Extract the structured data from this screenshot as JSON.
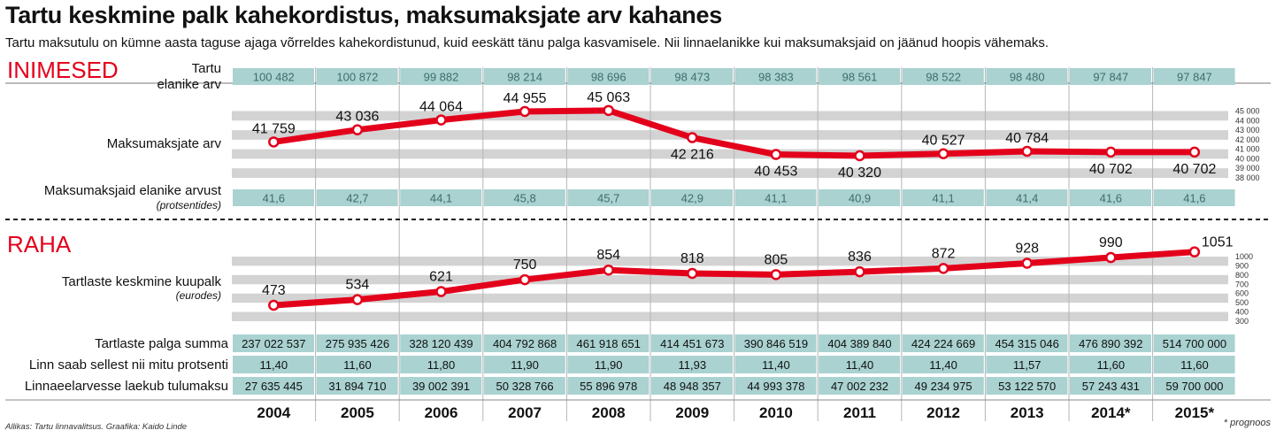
{
  "title": "Tartu keskmine palk kahekordistus, maksumaksjate arv kahanes",
  "subtitle": "Tartu maksutulu on kümne aasta taguse ajaga võrreldes kahekordistunud, kuid eeskätt tänu palga kasvamisele. Nii linnaelanikke kui maksumaksjaid on jäänud hoopis vähemaks.",
  "source": "Allikas: Tartu linnavalitsus. Graafika: Kaido Linde",
  "footnote": "* prognoos",
  "colors": {
    "line": "#e3001b",
    "cell": "#a9d2d1",
    "band": "#d3d3d3",
    "section": "#e3001b"
  },
  "years": [
    "2004",
    "2005",
    "2006",
    "2007",
    "2008",
    "2009",
    "2010",
    "2011",
    "2012",
    "2013",
    "2014*",
    "2015*"
  ],
  "sections": {
    "people": "INIMESED",
    "money": "RAHA"
  },
  "rows": {
    "population": {
      "label_lines": [
        "Tartu",
        "elanike arv"
      ],
      "values": [
        "100 482",
        "100 872",
        "99 882",
        "98 214",
        "98 696",
        "98 473",
        "98 383",
        "98 561",
        "98 522",
        "98 480",
        "97 847",
        "97 847"
      ]
    },
    "share": {
      "label": "Maksumaksjaid elanike arvust",
      "sublabel": "(protsentides)",
      "values": [
        "41,6",
        "42,7",
        "44,1",
        "45,8",
        "45,7",
        "42,9",
        "41,1",
        "40,9",
        "41,1",
        "41,4",
        "41,6",
        "41,6"
      ]
    },
    "wage_sum": {
      "label": "Tartlaste palga summa",
      "values": [
        "237 022 537",
        "275 935 426",
        "328 120 439",
        "404 792 868",
        "461 918 651",
        "414 451 673",
        "390 846 519",
        "404 389 840",
        "424 224 669",
        "454 315 046",
        "476 890 392",
        "514 700 000"
      ]
    },
    "city_pct": {
      "label": "Linn saab sellest nii mitu protsenti",
      "values": [
        "11,40",
        "11,60",
        "11,80",
        "11,90",
        "11,90",
        "11,93",
        "11,40",
        "11,40",
        "11,40",
        "11,57",
        "11,60",
        "11,60"
      ]
    },
    "income_tax": {
      "label": "Linnaeelarvesse laekub tulumaksu",
      "values": [
        "27 635 445",
        "31 894 710",
        "39 002 391",
        "50 328 766",
        "55 896 978",
        "48 948 357",
        "44 993 378",
        "47 002 232",
        "49 234 975",
        "53 122 570",
        "57 243 431",
        "59 700 000"
      ]
    }
  },
  "chart_data": [
    {
      "type": "line",
      "label": "Maksumaksjate arv",
      "categories": [
        "2004",
        "2005",
        "2006",
        "2007",
        "2008",
        "2009",
        "2010",
        "2011",
        "2012",
        "2013",
        "2014*",
        "2015*"
      ],
      "values": [
        41759,
        43036,
        44064,
        44955,
        45063,
        42216,
        40453,
        40320,
        40527,
        40784,
        40702,
        40702
      ],
      "value_labels": [
        "41 759",
        "43 036",
        "44 064",
        "44 955",
        "45 063",
        "42 216",
        "40 453",
        "40 320",
        "40 527",
        "40 784",
        "40 702",
        "40 702"
      ],
      "label_position": [
        "above",
        "above",
        "above",
        "above",
        "above",
        "below",
        "below",
        "below",
        "above",
        "above",
        "below",
        "below"
      ],
      "yticks": [
        38000,
        39000,
        40000,
        41000,
        42000,
        43000,
        44000,
        45000
      ],
      "ytick_labels": [
        "38 000",
        "39 000",
        "40 000",
        "41 000",
        "42 000",
        "43 000",
        "44 000",
        "45 000"
      ],
      "ylim": [
        38000,
        45000
      ]
    },
    {
      "type": "line",
      "label_lines": [
        "Tartlaste keskmine kuupalk",
        "(eurodes)"
      ],
      "categories": [
        "2004",
        "2005",
        "2006",
        "2007",
        "2008",
        "2009",
        "2010",
        "2011",
        "2012",
        "2013",
        "2014*",
        "2015*"
      ],
      "values": [
        473,
        534,
        621,
        750,
        854,
        818,
        805,
        836,
        872,
        928,
        990,
        1051
      ],
      "value_labels": [
        "473",
        "534",
        "621",
        "750",
        "854",
        "818",
        "805",
        "836",
        "872",
        "928",
        "990",
        "1051"
      ],
      "yticks": [
        300,
        400,
        500,
        600,
        700,
        800,
        900,
        1000
      ],
      "ytick_labels": [
        "300",
        "400",
        "500",
        "600",
        "700",
        "800",
        "900",
        "1000"
      ],
      "ylim": [
        300,
        1000
      ]
    }
  ]
}
